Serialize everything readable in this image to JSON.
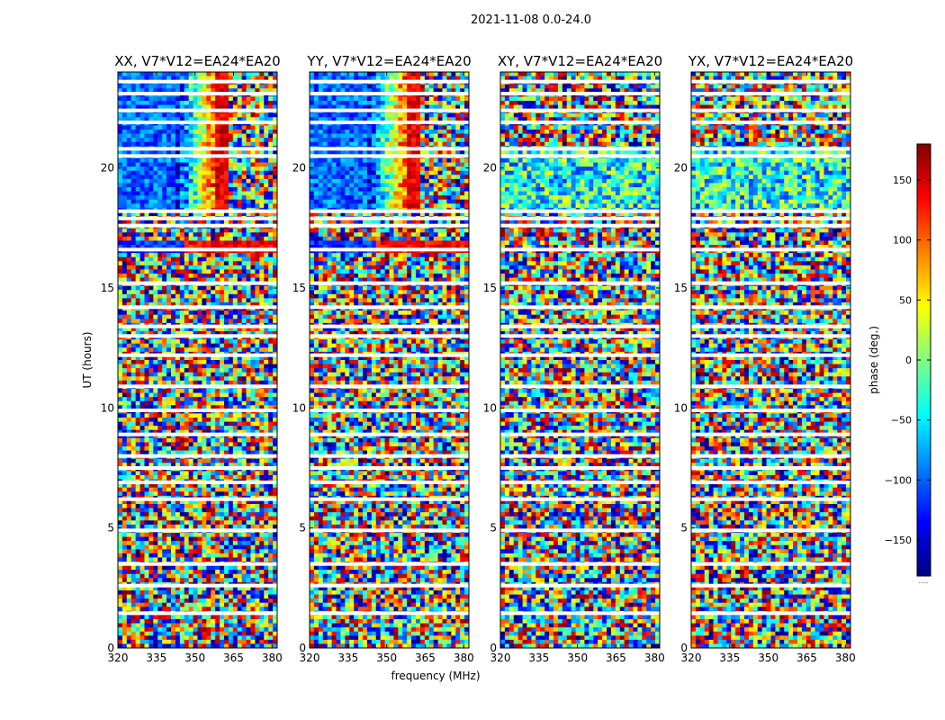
{
  "chart_data": {
    "type": "heatmap",
    "title": "2021-11-08 0.0-24.0",
    "xlabel": "frequency (MHz)",
    "ylabel": "UT (hours)",
    "xlim": [
      320,
      382
    ],
    "ylim": [
      0,
      24
    ],
    "x_ticks": [
      "320",
      "335",
      "350",
      "365",
      "380"
    ],
    "x_tick_values": [
      320,
      335,
      350,
      365,
      380
    ],
    "y_ticks": [
      "0",
      "5",
      "10",
      "15",
      "20"
    ],
    "y_tick_values": [
      0,
      5,
      10,
      15,
      20
    ],
    "colormap": "jet",
    "colorbar": {
      "label": "phase (deg.)",
      "range": [
        -180,
        180
      ],
      "ticks": [
        "−150",
        "−100",
        "−50",
        "0",
        "50",
        "100",
        "150"
      ],
      "tick_values": [
        -150,
        -100,
        -50,
        0,
        50,
        100,
        150
      ],
      "footnote": "......"
    },
    "panels": [
      {
        "title": "XX, V7*V12=EA24*EA20",
        "pattern": "parallel"
      },
      {
        "title": "YY, V7*V12=EA24*EA20",
        "pattern": "parallel"
      },
      {
        "title": "XY, V7*V12=EA24*EA20",
        "pattern": "cross"
      },
      {
        "title": "YX, V7*V12=EA24*EA20",
        "pattern": "cross"
      }
    ],
    "flagged_ut_hours": [
      1.45,
      2.6,
      3.5,
      4.9,
      6.2,
      6.9,
      7.5,
      8.0,
      8.9,
      9.9,
      10.9,
      12.2,
      13.0,
      13.4,
      14.2,
      15.2,
      16.6,
      17.6,
      17.9,
      18.2,
      20.5,
      20.8,
      21.9,
      22.4,
      23.1,
      23.6
    ]
  }
}
